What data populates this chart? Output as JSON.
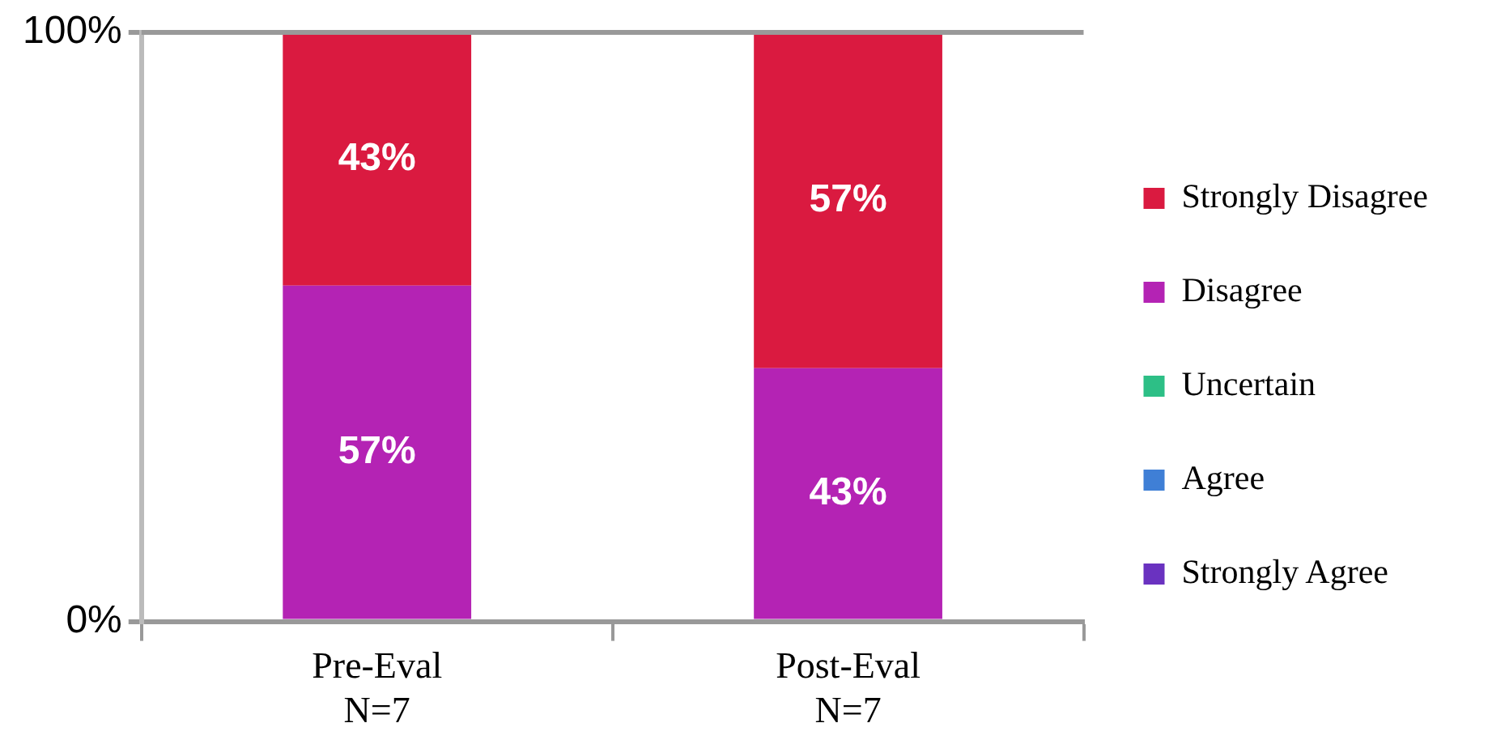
{
  "chart_data": {
    "type": "bar",
    "stacked": true,
    "categories": [
      "Pre-Eval\nN=7",
      "Post-Eval\nN=7"
    ],
    "series": [
      {
        "name": "Strongly Agree",
        "color": "#6a32c0",
        "values": [
          0,
          0
        ],
        "value_labels": [
          null,
          null
        ]
      },
      {
        "name": "Agree",
        "color": "#3f7fd6",
        "values": [
          0,
          0
        ],
        "value_labels": [
          null,
          null
        ]
      },
      {
        "name": "Uncertain",
        "color": "#2dbf86",
        "values": [
          0,
          0
        ],
        "value_labels": [
          null,
          null
        ]
      },
      {
        "name": "Disagree",
        "color": "#b423b4",
        "values": [
          57,
          43
        ],
        "value_labels": [
          "57%",
          "43%"
        ]
      },
      {
        "name": "Strongly Disagree",
        "color": "#da1a40",
        "values": [
          43,
          57
        ],
        "value_labels": [
          "43%",
          "57%"
        ]
      }
    ],
    "ylim": [
      0,
      100
    ],
    "yticks": [
      {
        "value": 0,
        "label": "0%"
      },
      {
        "value": 100,
        "label": "100%"
      }
    ],
    "legend": "right"
  }
}
